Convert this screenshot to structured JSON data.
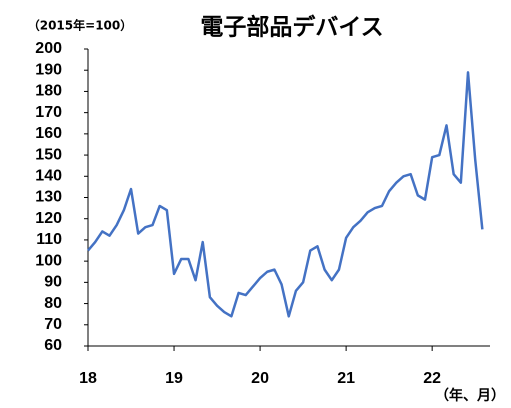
{
  "chart_data": {
    "type": "line",
    "title": "電子部品デバイス",
    "y_unit_label": "（2015年=100）",
    "x_label": "（年、月）",
    "categories": [
      "18",
      null,
      null,
      null,
      null,
      null,
      null,
      null,
      null,
      null,
      null,
      null,
      "19",
      null,
      null,
      null,
      null,
      null,
      null,
      null,
      null,
      null,
      null,
      null,
      "20",
      null,
      null,
      null,
      null,
      null,
      null,
      null,
      null,
      null,
      null,
      null,
      "21",
      null,
      null,
      null,
      null,
      null,
      null,
      null,
      null,
      null,
      null,
      null,
      "22",
      null,
      null,
      null,
      null,
      null,
      null,
      null
    ],
    "values": [
      105,
      109,
      114,
      112,
      117,
      124,
      134,
      113,
      116,
      117,
      126,
      124,
      94,
      101,
      101,
      91,
      109,
      83,
      79,
      76,
      74,
      85,
      84,
      88,
      92,
      95,
      96,
      89,
      74,
      86,
      90,
      105,
      107,
      96,
      91,
      96,
      111,
      116,
      119,
      123,
      125,
      126,
      133,
      137,
      140,
      141,
      131,
      129,
      149,
      150,
      164,
      141,
      137,
      189,
      148,
      115
    ],
    "color": "#4472c4",
    "ylim": [
      60,
      200
    ],
    "yticks": [
      60,
      70,
      80,
      90,
      100,
      110,
      120,
      130,
      140,
      150,
      160,
      170,
      180,
      190,
      200
    ],
    "grid": false
  }
}
